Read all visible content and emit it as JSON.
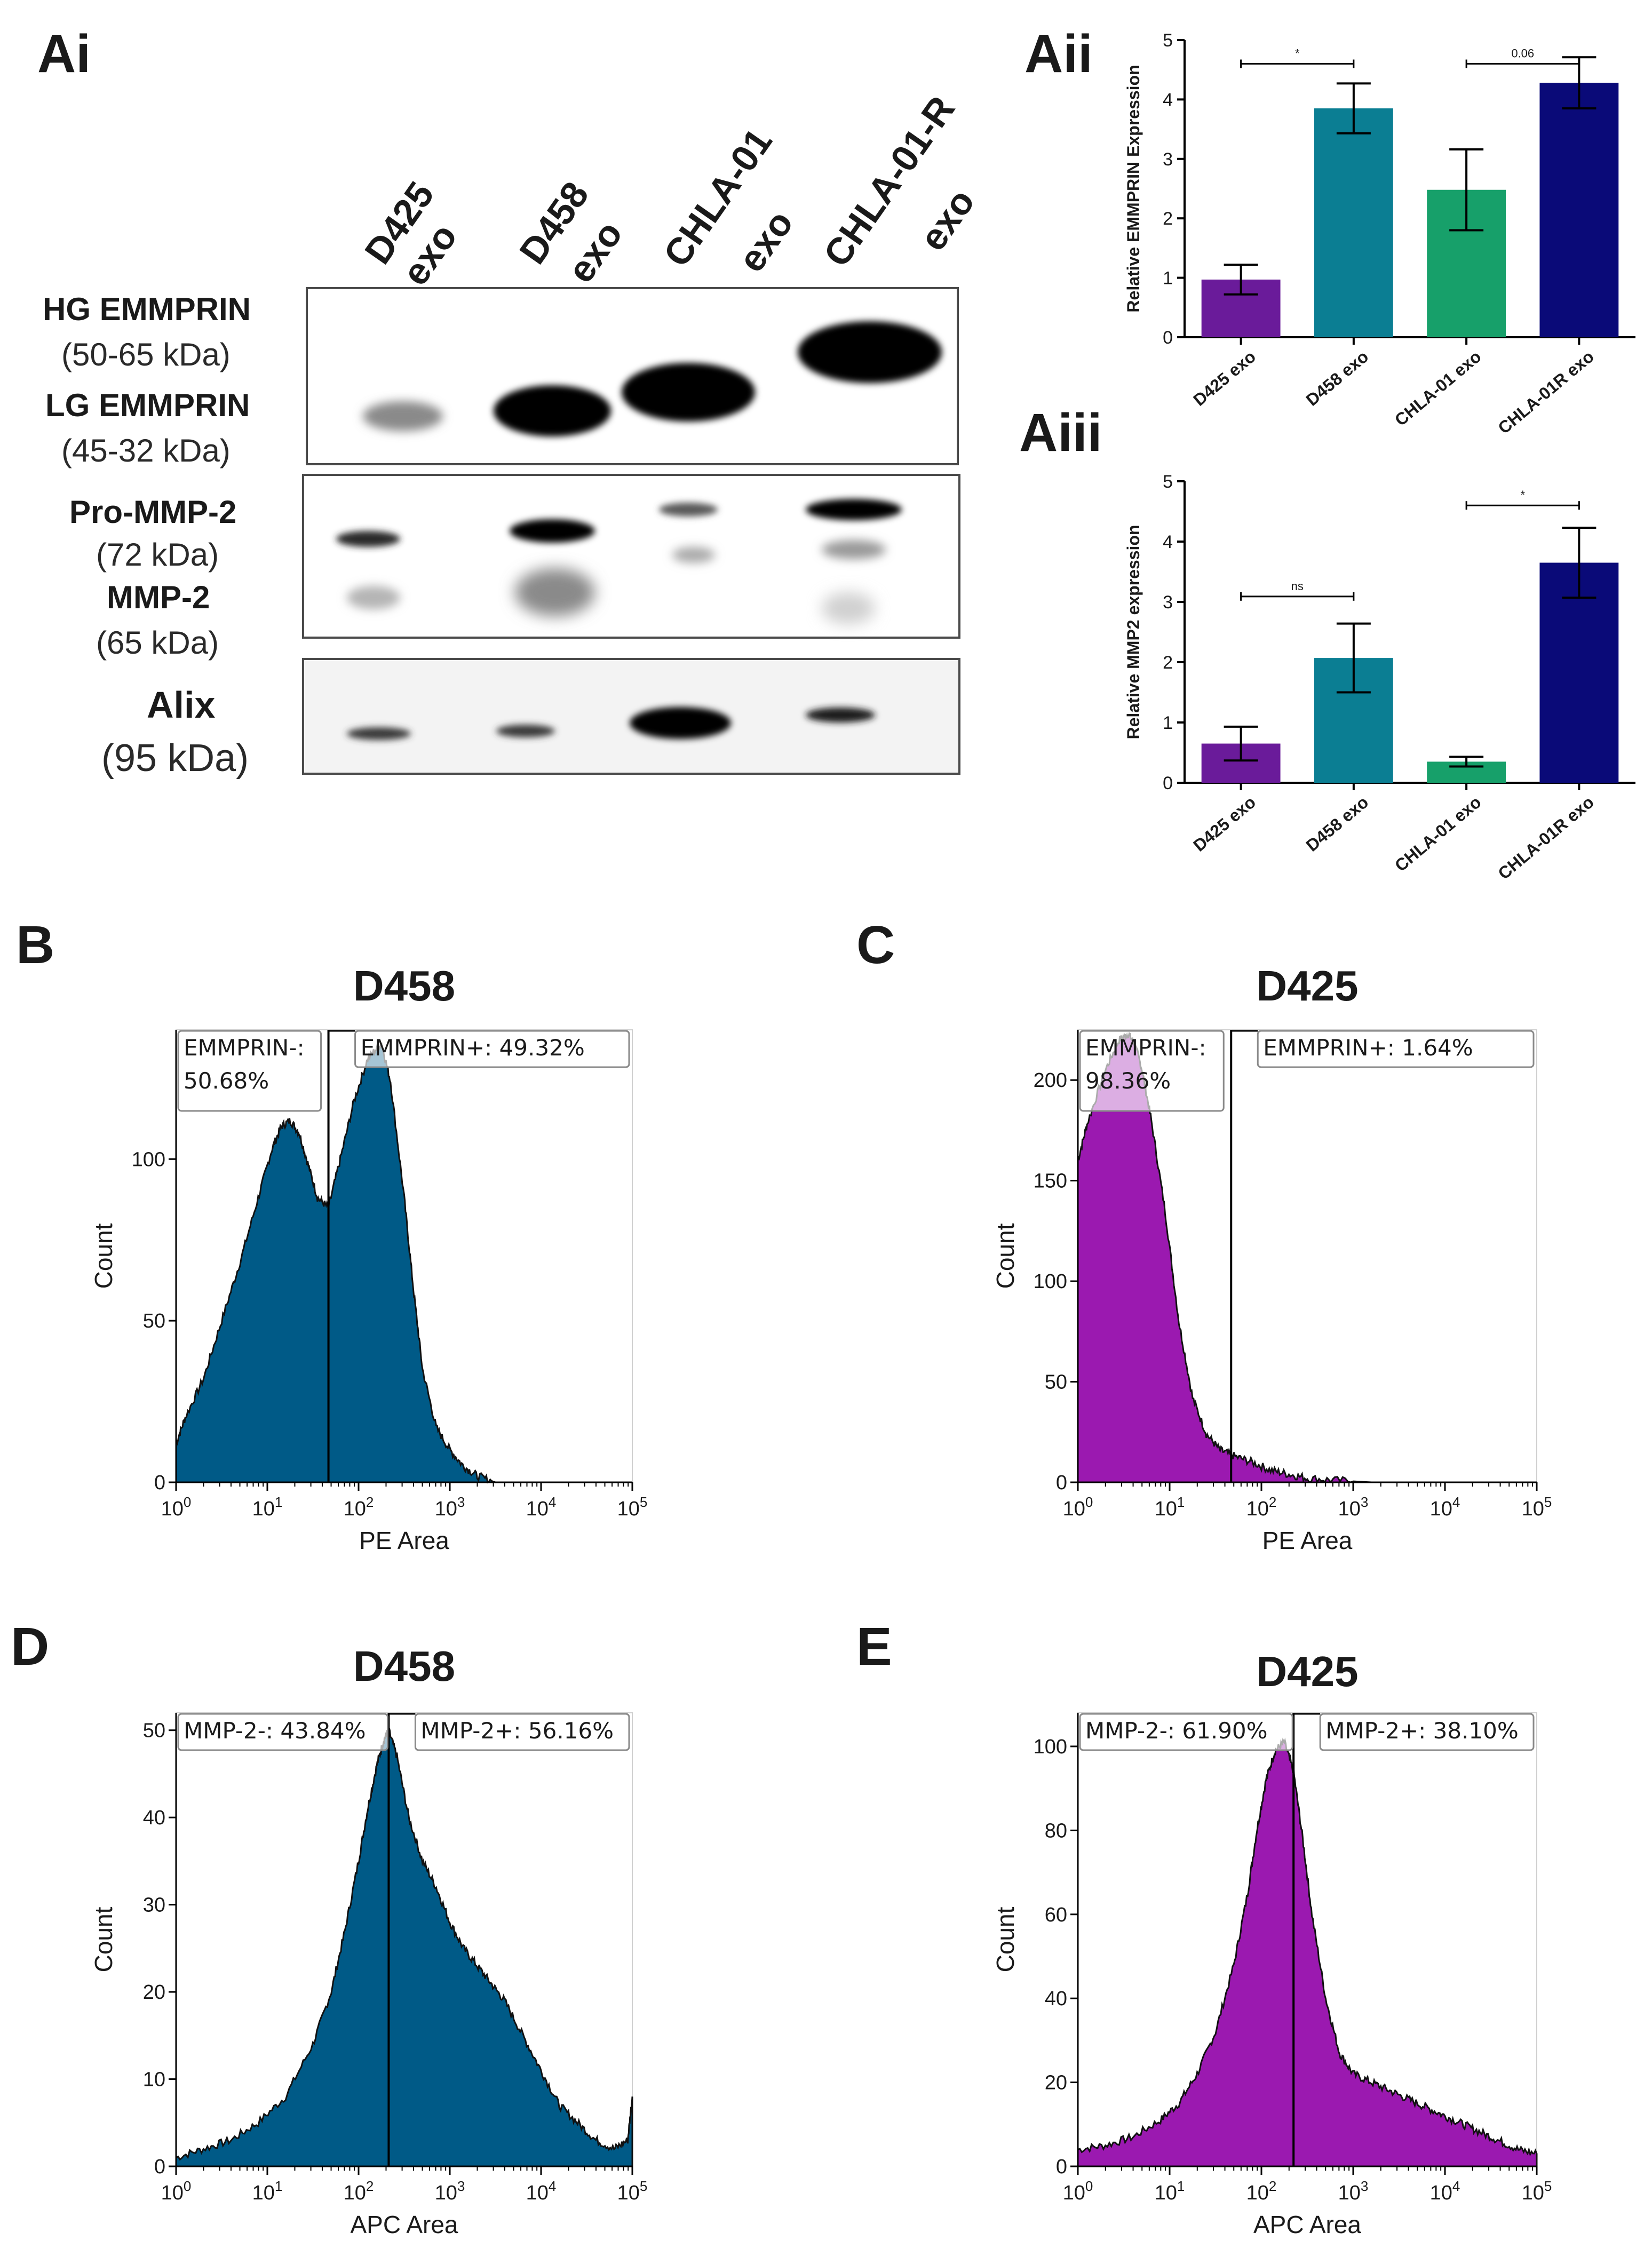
{
  "panels": {
    "Ai": "Ai",
    "Aii": "Aii",
    "Aiii": "Aiii",
    "B": "B",
    "C": "C",
    "D": "D",
    "E": "E"
  },
  "western_blot": {
    "lanes": [
      {
        "line1": "D425",
        "line2": "exo"
      },
      {
        "line1": "D458",
        "line2": "exo"
      },
      {
        "line1": "CHLA-01",
        "line2": "exo"
      },
      {
        "line1": "CHLA-01-R",
        "line2": "exo"
      }
    ],
    "labels": {
      "hg": "HG EMMPRIN",
      "hg_kda": "(50-65 kDa)",
      "lg": "LG EMMPRIN",
      "lg_kda": "(45-32 kDa)",
      "pro": "Pro-MMP-2",
      "pro_kda": "(72 kDa)",
      "mmp": "MMP-2",
      "mmp_kda": "(65 kDa)",
      "alix": "Alix",
      "alix_kda": "(95 kDa)"
    }
  },
  "colors": {
    "purple": "#6a1b9a",
    "teal": "#0b7e93",
    "green": "#17a06a",
    "navy": "#0a0a78",
    "hist_blue": "#005a87",
    "hist_purple": "#9b19b0"
  },
  "chart_data": [
    {
      "id": "Aii",
      "type": "bar",
      "ylabel": "Relative EMMPRIN Expression",
      "categories": [
        "D425 exo",
        "D458 exo",
        "CHLA-01 exo",
        "CHLA-01R exo"
      ],
      "values": [
        0.97,
        3.85,
        2.48,
        4.28
      ],
      "errors": [
        0.25,
        0.42,
        0.68,
        0.43
      ],
      "ylim": [
        0,
        5
      ],
      "yticks": [
        "0",
        "1",
        "2",
        "3",
        "4",
        "5"
      ],
      "comparisons": [
        {
          "from": 1,
          "to": 2,
          "label": "*"
        },
        {
          "from": 3,
          "to": 4,
          "label": "0.06"
        }
      ]
    },
    {
      "id": "Aiii",
      "type": "bar",
      "ylabel": "Relative MMP2 expression",
      "categories": [
        "D425 exo",
        "D458 exo",
        "CHLA-01 exo",
        "CHLA-01R exo"
      ],
      "values": [
        0.65,
        2.07,
        0.35,
        3.65
      ],
      "errors": [
        0.28,
        0.57,
        0.08,
        0.58
      ],
      "ylim": [
        0,
        5
      ],
      "yticks": [
        "0",
        "1",
        "2",
        "3",
        "4",
        "5"
      ],
      "comparisons": [
        {
          "from": 1,
          "to": 2,
          "label": "ns"
        },
        {
          "from": 3,
          "to": 4,
          "label": "*"
        }
      ]
    },
    {
      "id": "B",
      "type": "area",
      "title": "D458",
      "xlabel": "PE Area",
      "ylabel": "Count",
      "xscale": "log",
      "xlim": [
        0,
        5
      ],
      "ylim": [
        0,
        140
      ],
      "yticks": [
        0,
        50,
        100
      ],
      "gate_x": 1.67,
      "gate_top": 140,
      "gate_neg": {
        "line1": "EMMPRIN-:",
        "line2": "50.68%"
      },
      "gate_pos": "EMMPRIN+: 49.32%",
      "curve_x": [
        0,
        0.1,
        0.3,
        0.5,
        0.7,
        0.9,
        1.05,
        1.15,
        1.25,
        1.35,
        1.45,
        1.55,
        1.67,
        1.8,
        1.95,
        2.1,
        2.25,
        2.35,
        2.5,
        2.6,
        2.7,
        2.85,
        3.0,
        3.15,
        3.3,
        3.5
      ],
      "curve_y": [
        12,
        20,
        32,
        50,
        68,
        88,
        103,
        110,
        112,
        108,
        98,
        88,
        85,
        100,
        118,
        131,
        136,
        124,
        88,
        60,
        35,
        17,
        10,
        5,
        2,
        0
      ]
    },
    {
      "id": "C",
      "type": "area",
      "title": "D425",
      "xlabel": "PE Area",
      "ylabel": "Count",
      "xscale": "log",
      "xlim": [
        0,
        5
      ],
      "ylim": [
        0,
        225
      ],
      "yticks": [
        0,
        50,
        100,
        150,
        200
      ],
      "gate_x": 1.67,
      "gate_top": 225,
      "gate_neg": {
        "line1": "EMMPRIN-:",
        "line2": "98.36%"
      },
      "gate_pos": "EMMPRIN+: 1.64%",
      "curve_x": [
        0,
        0.1,
        0.3,
        0.45,
        0.55,
        0.62,
        0.7,
        0.8,
        0.95,
        1.1,
        1.25,
        1.4,
        1.55,
        1.7,
        1.9,
        2.1,
        2.3,
        2.5,
        2.8,
        3.2,
        5.0
      ],
      "curve_y": [
        160,
        178,
        205,
        220,
        223,
        218,
        205,
        180,
        135,
        80,
        42,
        24,
        16,
        13,
        10,
        6,
        4,
        2,
        1,
        0,
        0
      ]
    },
    {
      "id": "D",
      "type": "area",
      "title": "D458",
      "xlabel": "APC Area",
      "ylabel": "Count",
      "xscale": "log",
      "xlim": [
        0,
        5
      ],
      "ylim": [
        0,
        52
      ],
      "yticks": [
        0,
        10,
        20,
        30,
        40,
        50
      ],
      "gate_x": 2.33,
      "gate_top": 52,
      "gate_neg": {
        "line1": "MMP-2-: 43.84%",
        "line2": ""
      },
      "gate_pos": "MMP-2+: 56.16%",
      "curve_x": [
        0,
        0.3,
        0.6,
        0.9,
        1.2,
        1.5,
        1.7,
        1.85,
        2.0,
        2.1,
        2.2,
        2.28,
        2.33,
        2.42,
        2.55,
        2.7,
        2.85,
        3.0,
        3.15,
        3.3,
        3.45,
        3.6,
        3.8,
        4.0,
        4.2,
        4.4,
        4.6,
        4.8,
        4.95,
        5.0
      ],
      "curve_y": [
        1,
        2,
        3,
        5,
        8,
        14,
        20,
        27,
        35,
        41,
        46,
        49,
        50,
        47,
        40,
        35,
        32,
        28,
        25,
        23,
        21,
        19,
        15,
        11,
        7,
        5,
        3,
        2,
        3,
        8
      ]
    },
    {
      "id": "E",
      "type": "area",
      "title": "D425",
      "xlabel": "APC Area",
      "ylabel": "Count",
      "xscale": "log",
      "xlim": [
        0,
        5
      ],
      "ylim": [
        0,
        108
      ],
      "yticks": [
        0,
        20,
        40,
        60,
        80,
        100
      ],
      "gate_x": 2.35,
      "gate_top": 108,
      "gate_neg": {
        "line1": "MMP-2-: 61.90%",
        "line2": ""
      },
      "gate_pos": "MMP-2+: 38.10%",
      "curve_x": [
        0,
        0.3,
        0.6,
        0.9,
        1.1,
        1.3,
        1.5,
        1.7,
        1.85,
        1.95,
        2.05,
        2.15,
        2.25,
        2.35,
        2.45,
        2.55,
        2.7,
        2.85,
        3.0,
        3.2,
        3.4,
        3.6,
        3.8,
        4.0,
        4.2,
        4.4,
        4.6,
        4.8,
        5.0
      ],
      "curve_y": [
        4,
        5,
        7,
        11,
        15,
        22,
        32,
        48,
        65,
        80,
        92,
        99,
        101,
        94,
        78,
        60,
        40,
        27,
        22,
        20,
        18,
        16,
        14,
        12,
        10,
        8,
        6,
        4,
        3
      ]
    }
  ]
}
